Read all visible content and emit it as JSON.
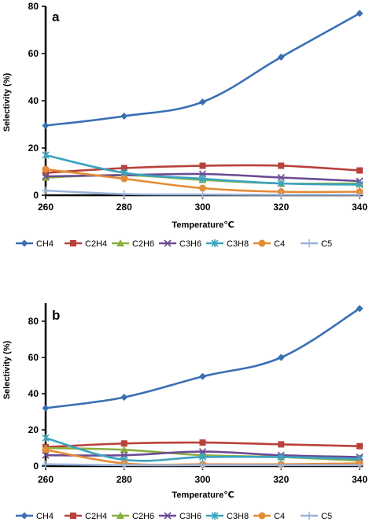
{
  "chart_data": [
    {
      "type": "line",
      "panel_label": "a",
      "xlabel": "Temperature℃",
      "ylabel": "Selectivity (%)",
      "x": [
        260,
        280,
        300,
        320,
        340
      ],
      "xticks": [
        "260",
        "280",
        "300",
        "320",
        "340"
      ],
      "ylim": [
        0,
        80
      ],
      "yticks": [
        0,
        20,
        40,
        60,
        80
      ],
      "legend_position": "bottom",
      "series": [
        {
          "name": "CH4",
          "color": "#3a6fb5",
          "marker": "diamond",
          "values": [
            29.5,
            33.5,
            39.5,
            58.5,
            77
          ]
        },
        {
          "name": "C2H4",
          "color": "#b8413b",
          "marker": "square",
          "values": [
            9.5,
            11.5,
            12.5,
            12.5,
            10.5
          ]
        },
        {
          "name": "C2H6",
          "color": "#8aaf3e",
          "marker": "triangle",
          "values": [
            7.5,
            8.5,
            6.5,
            5,
            5
          ]
        },
        {
          "name": "C3H6",
          "color": "#6c4b93",
          "marker": "x",
          "values": [
            8,
            8.5,
            9,
            7.5,
            6
          ]
        },
        {
          "name": "C3H8",
          "color": "#3ca4bf",
          "marker": "asterisk",
          "values": [
            17,
            9.5,
            7,
            5,
            4.5
          ]
        },
        {
          "name": "C4",
          "color": "#e48b35",
          "marker": "circle",
          "values": [
            11,
            7,
            3,
            1.5,
            1.5
          ]
        },
        {
          "name": "C5",
          "color": "#9ab3d9",
          "marker": "plus",
          "values": [
            2,
            0.5,
            0.3,
            0.2,
            0.2
          ]
        }
      ]
    },
    {
      "type": "line",
      "panel_label": "b",
      "xlabel": "Temperature℃",
      "ylabel": "Selectivity (%)",
      "x": [
        260,
        280,
        300,
        320,
        340
      ],
      "xticks": [
        "260",
        "280",
        "300",
        "320",
        "340"
      ],
      "ylim": [
        0,
        90
      ],
      "yticks": [
        0,
        20,
        40,
        60,
        80
      ],
      "legend_position": "bottom",
      "series": [
        {
          "name": "CH4",
          "color": "#3a6fb5",
          "marker": "diamond",
          "values": [
            32,
            38,
            49.5,
            60,
            87
          ]
        },
        {
          "name": "C2H4",
          "color": "#b8413b",
          "marker": "square",
          "values": [
            10.5,
            12.5,
            13,
            12,
            11
          ]
        },
        {
          "name": "C2H6",
          "color": "#8aaf3e",
          "marker": "triangle",
          "values": [
            10,
            9,
            6,
            5,
            3
          ]
        },
        {
          "name": "C3H6",
          "color": "#6c4b93",
          "marker": "x",
          "values": [
            6,
            6,
            8,
            6,
            5
          ]
        },
        {
          "name": "C3H8",
          "color": "#3ca4bf",
          "marker": "asterisk",
          "values": [
            15.5,
            3.5,
            5,
            5,
            4
          ]
        },
        {
          "name": "C4",
          "color": "#e48b35",
          "marker": "circle",
          "values": [
            9,
            1.5,
            1,
            1,
            1.5
          ]
        },
        {
          "name": "C5",
          "color": "#9ab3d9",
          "marker": "plus",
          "values": [
            1,
            0.5,
            0.5,
            0.5,
            0.5
          ]
        }
      ]
    }
  ]
}
